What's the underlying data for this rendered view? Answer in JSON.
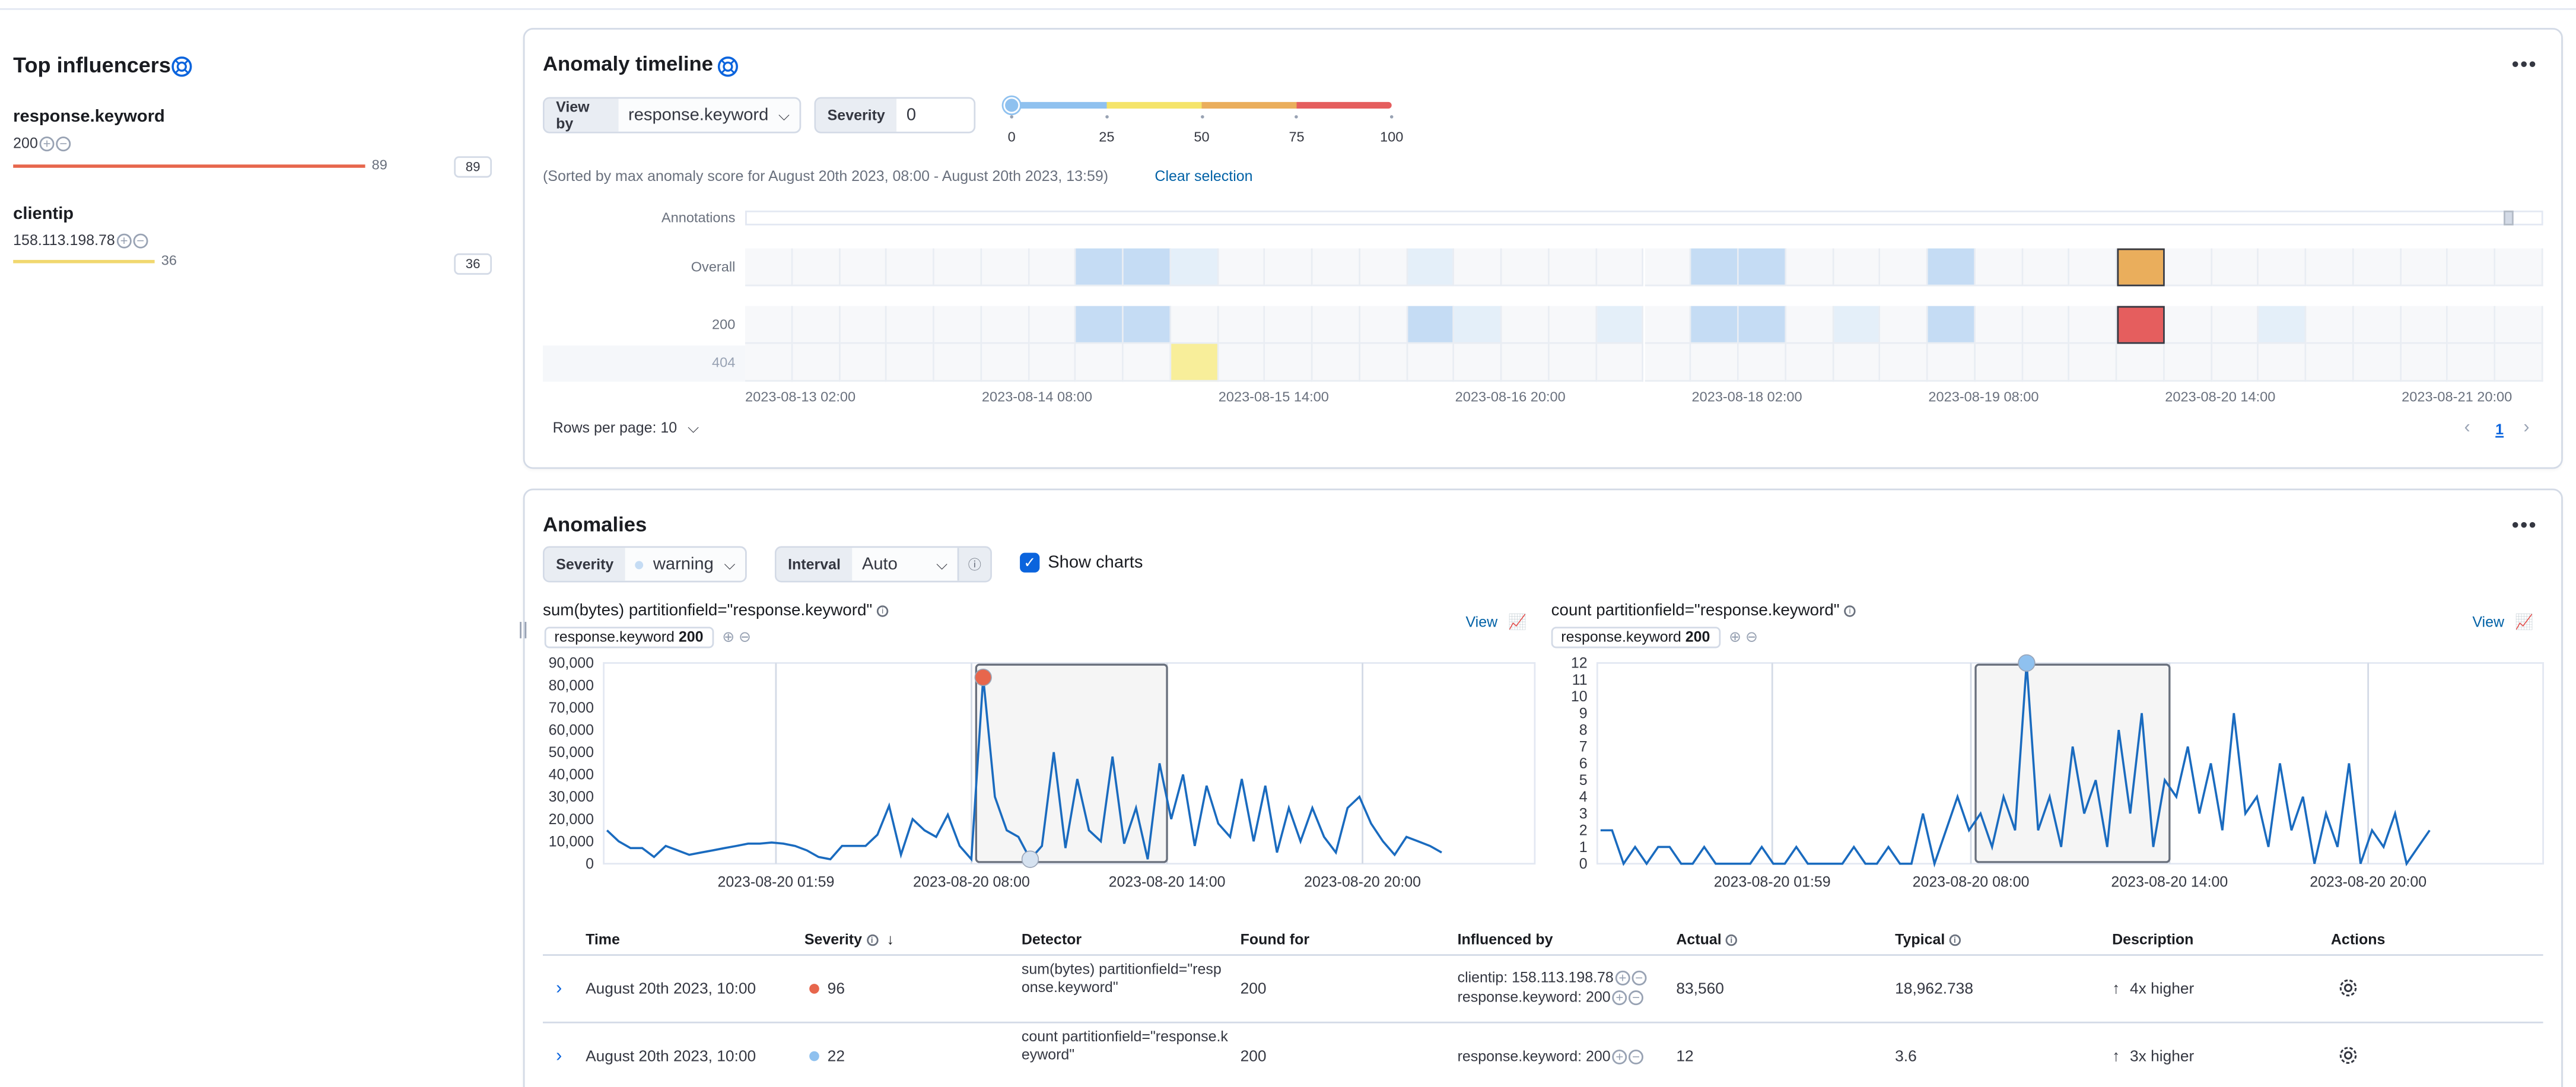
{
  "influencers": {
    "title": "Top influencers",
    "groups": [
      {
        "field": "response.keyword",
        "value": "200",
        "score": "89",
        "badge": "89",
        "color": "#e7664c",
        "fraction": 0.89
      },
      {
        "field": "clientip",
        "value": "158.113.198.78",
        "score": "36",
        "badge": "36",
        "color": "#f1d86f",
        "fraction": 0.36
      }
    ]
  },
  "timeline": {
    "title": "Anomaly timeline",
    "view_by_label": "View by",
    "view_by_value": "response.keyword",
    "severity_label": "Severity",
    "severity_value": "0",
    "severity_ticks": [
      "0",
      "25",
      "50",
      "75",
      "100"
    ],
    "sorted_note": "(Sorted by max anomaly score for August 20th 2023, 08:00 - August 20th 2023, 13:59)",
    "clear_selection": "Clear selection",
    "rows": {
      "annotations": "Annotations",
      "overall": "Overall",
      "r200": "200",
      "r404": "404"
    },
    "x_labels": [
      "2023-08-13 02:00",
      "2023-08-14 08:00",
      "2023-08-15 14:00",
      "2023-08-16 20:00",
      "2023-08-18 02:00",
      "2023-08-19 08:00",
      "2023-08-20 14:00",
      "2023-08-21 20:00"
    ],
    "rows_per_page": "Rows per page: 10",
    "page": "1",
    "colors": {
      "light_blue": "#c5dcf4",
      "pale_blue": "#e4eff9",
      "empty": "#f7f8fa",
      "orange": "#eaae5c",
      "red": "#e55e5e",
      "yellow": "#f8ee9a"
    },
    "cells": {
      "overall": {
        "7": "light_blue",
        "8": "light_blue",
        "9": "pale_blue",
        "14": "pale_blue",
        "20": "light_blue",
        "21": "light_blue",
        "25": "light_blue",
        "29": "orange"
      },
      "r200": {
        "7": "light_blue",
        "8": "light_blue",
        "14": "light_blue",
        "15": "pale_blue",
        "18": "pale_blue",
        "20": "light_blue",
        "21": "light_blue",
        "23": "pale_blue",
        "25": "light_blue",
        "29": "red",
        "32": "pale_blue"
      },
      "r404": {
        "9": "yellow"
      }
    }
  },
  "anomalies": {
    "title": "Anomalies",
    "severity_label": "Severity",
    "severity_value": "warning",
    "interval_label": "Interval",
    "interval_value": "Auto",
    "show_charts": "Show charts",
    "charts": [
      {
        "title": "sum(bytes) partitionfield=\"response.keyword\"",
        "entity_field": "response.keyword",
        "entity_value": "200",
        "view": "View"
      },
      {
        "title": "count partitionfield=\"response.keyword\"",
        "entity_field": "response.keyword",
        "entity_value": "200",
        "view": "View"
      }
    ],
    "columns": {
      "time": "Time",
      "severity": "Severity",
      "detector": "Detector",
      "found_for": "Found for",
      "influenced_by": "Influenced by",
      "actual": "Actual",
      "typical": "Typical",
      "description": "Description",
      "actions": "Actions"
    },
    "rows": [
      {
        "time": "August 20th 2023, 10:00",
        "severity": "96",
        "sev_color": "#e7664c",
        "detector": "sum(bytes) partitionfield=\"response.keyword\"",
        "found_for": "200",
        "influencers": [
          "clientip: 158.113.198.78",
          "response.keyword: 200"
        ],
        "actual": "83,560",
        "typical": "18,962.738",
        "description": "4x higher"
      },
      {
        "time": "August 20th 2023, 10:00",
        "severity": "22",
        "sev_color": "#8fc1ef",
        "detector": "count partitionfield=\"response.keyword\"",
        "found_for": "200",
        "influencers": [
          "response.keyword: 200"
        ],
        "actual": "12",
        "typical": "3.6",
        "description": "3x higher"
      }
    ]
  },
  "chart_data": [
    {
      "type": "line",
      "title": "sum(bytes) partitionfield=\"response.keyword\"",
      "ylim": [
        0,
        90000
      ],
      "y_ticks": [
        "0",
        "10,000",
        "20,000",
        "30,000",
        "40,000",
        "50,000",
        "60,000",
        "70,000",
        "80,000",
        "90,000"
      ],
      "x_ticks": [
        "2023-08-20 01:59",
        "2023-08-20 08:00",
        "2023-08-20 14:00",
        "2023-08-20 20:00"
      ],
      "y_values": [
        15000,
        10000,
        7000,
        7000,
        3000,
        8000,
        6000,
        4000,
        5000,
        6000,
        7000,
        8000,
        9000,
        9000,
        9500,
        9000,
        8000,
        6000,
        3000,
        2000,
        8000,
        8000,
        8000,
        13000,
        26000,
        4000,
        20000,
        15000,
        12000,
        22000,
        8000,
        2000,
        83560,
        30000,
        15000,
        12000,
        2000,
        8000,
        50000,
        7000,
        38000,
        15000,
        10000,
        48000,
        9000,
        25000,
        2000,
        45000,
        20000,
        40000,
        8000,
        35000,
        18000,
        12000,
        38000,
        10000,
        35000,
        5000,
        25000,
        10000,
        25000,
        12000,
        5000,
        25000,
        30000,
        18000,
        10000,
        4000,
        12000,
        10000,
        8000,
        5000
      ],
      "anomalies": [
        {
          "index": 32,
          "value": 83560,
          "color": "#e7664c"
        },
        {
          "index": 36,
          "value": 2000,
          "color": "#d6e2f0"
        }
      ]
    },
    {
      "type": "line",
      "title": "count partitionfield=\"response.keyword\"",
      "ylim": [
        0,
        12
      ],
      "y_ticks": [
        "0",
        "1",
        "2",
        "3",
        "4",
        "5",
        "6",
        "7",
        "8",
        "9",
        "10",
        "11",
        "12"
      ],
      "x_ticks": [
        "2023-08-20 01:59",
        "2023-08-20 08:00",
        "2023-08-20 14:00",
        "2023-08-20 20:00"
      ],
      "y_values": [
        2,
        2,
        0,
        1,
        0,
        1,
        1,
        0,
        0,
        1,
        0,
        0,
        0,
        0,
        1,
        0,
        0,
        1,
        0,
        0,
        0,
        0,
        1,
        0,
        0,
        1,
        0,
        0,
        3,
        0,
        2,
        4,
        2,
        3,
        1,
        4,
        2,
        12,
        2,
        4,
        1,
        7,
        3,
        5,
        1,
        8,
        3,
        9,
        1,
        5,
        4,
        7,
        3,
        6,
        2,
        9,
        3,
        4,
        1,
        6,
        2,
        4,
        0,
        3,
        1,
        6,
        0,
        2,
        1,
        3,
        0,
        1,
        2
      ],
      "anomalies": [
        {
          "index": 37,
          "value": 12,
          "color": "#8fc1ef"
        }
      ]
    }
  ]
}
